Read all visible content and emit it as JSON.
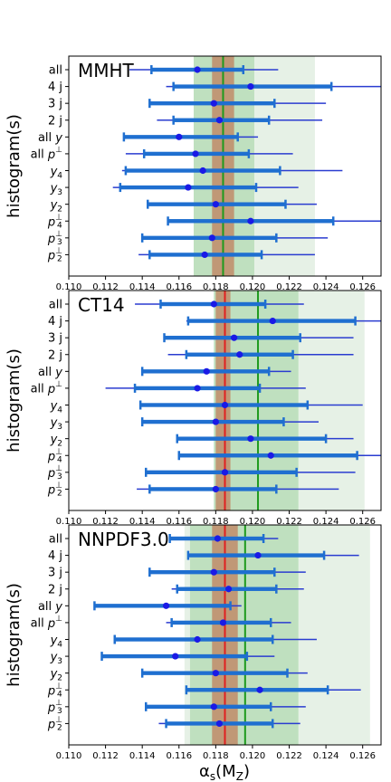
{
  "figure": {
    "xlabel": "αs(MZ)",
    "ylabel": "histogram(s)"
  },
  "colors": {
    "band_outer": "#e6f1e6",
    "band_inner": "#bfe0bf",
    "band_core": "#c0906e",
    "central_green": "#1e9a1e",
    "central_red": "#e02020",
    "whisker": "#2a3cd0",
    "bar": "#1f6fd0",
    "point": "#1a1ae6"
  },
  "chart_data": [
    {
      "type": "errorbar",
      "title": "MMHT",
      "xlim": [
        0.11,
        0.127
      ],
      "xticks": [
        "0.110",
        "0.112",
        "0.114",
        "0.116",
        "0.118",
        "0.120",
        "0.122",
        "0.124",
        "0.126"
      ],
      "categories": [
        "all",
        "4 j",
        "3 j",
        "2 j",
        "all y",
        "all p⊥",
        "y4",
        "y3",
        "y2",
        "p4⊥",
        "p3⊥",
        "p2⊥"
      ],
      "central": 0.1184,
      "outer_band": [
        0.1168,
        0.1234
      ],
      "inner_band": [
        0.1168,
        0.1201
      ],
      "core_band": [
        0.1178,
        0.119
      ],
      "green_line": 0.1184,
      "red_line": null,
      "points": [
        {
          "value": 0.117,
          "bar": [
            0.1145,
            0.1195
          ],
          "whisker": [
            0.1133,
            0.1214
          ]
        },
        {
          "value": 0.1199,
          "bar": [
            0.1157,
            0.1243
          ],
          "whisker": [
            0.1153,
            0.127
          ]
        },
        {
          "value": 0.1179,
          "bar": [
            0.1144,
            0.1212
          ],
          "whisker": [
            0.1144,
            0.124
          ]
        },
        {
          "value": 0.1182,
          "bar": [
            0.1157,
            0.1209
          ],
          "whisker": [
            0.1148,
            0.1238
          ]
        },
        {
          "value": 0.116,
          "bar": [
            0.113,
            0.1192
          ],
          "whisker": [
            0.113,
            0.1203
          ]
        },
        {
          "value": 0.1169,
          "bar": [
            0.1141,
            0.1198
          ],
          "whisker": [
            0.1131,
            0.1222
          ]
        },
        {
          "value": 0.1173,
          "bar": [
            0.1131,
            0.1215
          ],
          "whisker": [
            0.1129,
            0.1249
          ]
        },
        {
          "value": 0.1165,
          "bar": [
            0.1128,
            0.1202
          ],
          "whisker": [
            0.1124,
            0.1225
          ]
        },
        {
          "value": 0.118,
          "bar": [
            0.1143,
            0.1218
          ],
          "whisker": [
            0.1143,
            0.1235
          ]
        },
        {
          "value": 0.1199,
          "bar": [
            0.1154,
            0.1244
          ],
          "whisker": [
            0.1154,
            0.127
          ]
        },
        {
          "value": 0.1178,
          "bar": [
            0.114,
            0.1213
          ],
          "whisker": [
            0.114,
            0.1241
          ]
        },
        {
          "value": 0.1174,
          "bar": [
            0.1144,
            0.1205
          ],
          "whisker": [
            0.1138,
            0.1234
          ]
        }
      ]
    },
    {
      "type": "errorbar",
      "title": "CT14",
      "xlim": [
        0.11,
        0.127
      ],
      "xticks": [
        "0.110",
        "0.112",
        "0.114",
        "0.116",
        "0.118",
        "0.120",
        "0.122",
        "0.124",
        "0.126"
      ],
      "categories": [
        "all",
        "4 j",
        "3 j",
        "2 j",
        "all y",
        "all p⊥",
        "y4",
        "y3",
        "y2",
        "p4⊥",
        "p3⊥",
        "p2⊥"
      ],
      "central": 0.1185,
      "outer_band": [
        0.1179,
        0.1261
      ],
      "inner_band": [
        0.1179,
        0.1225
      ],
      "core_band": [
        0.118,
        0.1188
      ],
      "green_line": 0.1203,
      "red_line": 0.1185,
      "points": [
        {
          "value": 0.1179,
          "bar": [
            0.115,
            0.1207
          ],
          "whisker": [
            0.1136,
            0.1228
          ]
        },
        {
          "value": 0.1211,
          "bar": [
            0.1165,
            0.1256
          ],
          "whisker": [
            0.1164,
            0.127
          ]
        },
        {
          "value": 0.119,
          "bar": [
            0.1152,
            0.1226
          ],
          "whisker": [
            0.1152,
            0.1255
          ]
        },
        {
          "value": 0.1193,
          "bar": [
            0.1164,
            0.1222
          ],
          "whisker": [
            0.1154,
            0.1255
          ]
        },
        {
          "value": 0.1175,
          "bar": [
            0.114,
            0.1209
          ],
          "whisker": [
            0.114,
            0.1221
          ]
        },
        {
          "value": 0.117,
          "bar": [
            0.1136,
            0.1204
          ],
          "whisker": [
            0.112,
            0.1229
          ]
        },
        {
          "value": 0.1185,
          "bar": [
            0.1139,
            0.123
          ],
          "whisker": [
            0.1139,
            0.126
          ]
        },
        {
          "value": 0.118,
          "bar": [
            0.114,
            0.1217
          ],
          "whisker": [
            0.114,
            0.1236
          ]
        },
        {
          "value": 0.1199,
          "bar": [
            0.1159,
            0.124
          ],
          "whisker": [
            0.1159,
            0.1255
          ]
        },
        {
          "value": 0.121,
          "bar": [
            0.116,
            0.1257
          ],
          "whisker": [
            0.116,
            0.127
          ]
        },
        {
          "value": 0.1185,
          "bar": [
            0.1142,
            0.1224
          ],
          "whisker": [
            0.1142,
            0.1256
          ]
        },
        {
          "value": 0.118,
          "bar": [
            0.1144,
            0.1213
          ],
          "whisker": [
            0.1137,
            0.1247
          ]
        }
      ]
    },
    {
      "type": "errorbar",
      "title": "NNPDF3.0",
      "xlim": [
        0.11,
        0.127
      ],
      "xticks": [
        "0.110",
        "0.112",
        "0.114",
        "0.116",
        "0.118",
        "0.120",
        "0.122",
        "0.124",
        "0.126"
      ],
      "categories": [
        "all",
        "4 j",
        "3 j",
        "2 j",
        "all y",
        "all p⊥",
        "y4",
        "y3",
        "y2",
        "p4⊥",
        "p3⊥",
        "p2⊥"
      ],
      "central": 0.1185,
      "outer_band": [
        0.1163,
        0.1264
      ],
      "inner_band": [
        0.1166,
        0.1225
      ],
      "core_band": [
        0.1178,
        0.1192
      ],
      "green_line": 0.1196,
      "red_line": 0.1185,
      "points": [
        {
          "value": 0.1181,
          "bar": [
            0.1155,
            0.1206
          ],
          "whisker": [
            0.1155,
            0.1214
          ]
        },
        {
          "value": 0.1203,
          "bar": [
            0.1165,
            0.1239
          ],
          "whisker": [
            0.1165,
            0.1258
          ]
        },
        {
          "value": 0.1179,
          "bar": [
            0.1144,
            0.1212
          ],
          "whisker": [
            0.1144,
            0.1229
          ]
        },
        {
          "value": 0.1187,
          "bar": [
            0.1159,
            0.1213
          ],
          "whisker": [
            0.1156,
            0.1228
          ]
        },
        {
          "value": 0.1153,
          "bar": [
            0.1114,
            0.1188
          ],
          "whisker": [
            0.1114,
            0.1194
          ]
        },
        {
          "value": 0.1184,
          "bar": [
            0.1156,
            0.121
          ],
          "whisker": [
            0.1153,
            0.1221
          ]
        },
        {
          "value": 0.117,
          "bar": [
            0.1125,
            0.1211
          ],
          "whisker": [
            0.1125,
            0.1235
          ]
        },
        {
          "value": 0.1158,
          "bar": [
            0.1118,
            0.1197
          ],
          "whisker": [
            0.1118,
            0.1212
          ]
        },
        {
          "value": 0.118,
          "bar": [
            0.114,
            0.1219
          ],
          "whisker": [
            0.114,
            0.123
          ]
        },
        {
          "value": 0.1204,
          "bar": [
            0.1164,
            0.1241
          ],
          "whisker": [
            0.1164,
            0.1259
          ]
        },
        {
          "value": 0.1179,
          "bar": [
            0.1142,
            0.121
          ],
          "whisker": [
            0.1142,
            0.1229
          ]
        },
        {
          "value": 0.1182,
          "bar": [
            0.1153,
            0.1211
          ],
          "whisker": [
            0.1149,
            0.1226
          ]
        }
      ]
    }
  ]
}
